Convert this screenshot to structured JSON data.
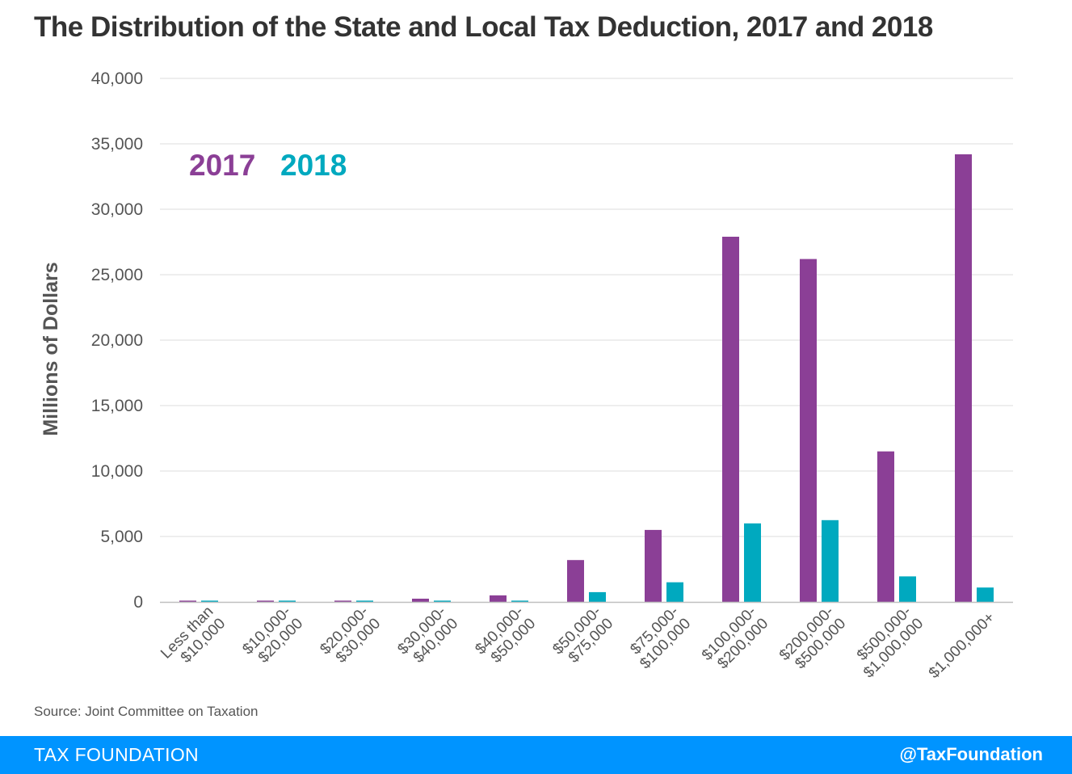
{
  "chart_data": {
    "type": "bar",
    "title": "The Distribution of the State and Local Tax Deduction, 2017 and 2018",
    "xlabel": "",
    "ylabel": "Millions of Dollars",
    "ylim": [
      0,
      40000
    ],
    "yticks": [
      0,
      5000,
      10000,
      15000,
      20000,
      25000,
      30000,
      35000,
      40000
    ],
    "ytick_labels": [
      "0",
      "5,000",
      "10,000",
      "15,000",
      "20,000",
      "25,000",
      "30,000",
      "35,000",
      "40,000"
    ],
    "grid": true,
    "legend_position": "top-left",
    "categories": [
      [
        "Less than",
        "$10,000"
      ],
      [
        "$10,000-",
        "$20,000"
      ],
      [
        "$20,000-",
        "$30,000"
      ],
      [
        "$30,000-",
        "$40,000"
      ],
      [
        "$40,000-",
        "$50,000"
      ],
      [
        "$50,000-",
        "$75,000"
      ],
      [
        "$75,000-",
        "$100,000"
      ],
      [
        "$100,000-",
        "$200,000"
      ],
      [
        "$200,000-",
        "$500,000"
      ],
      [
        "$500,000-",
        "$1,000,000"
      ],
      [
        "$1,000,000+"
      ]
    ],
    "series": [
      {
        "name": "2017",
        "color": "#8b3f96",
        "values": [
          100,
          100,
          100,
          250,
          500,
          3200,
          5500,
          27900,
          26200,
          11500,
          34200
        ]
      },
      {
        "name": "2018",
        "color": "#00a9bf",
        "values": [
          100,
          100,
          100,
          100,
          100,
          750,
          1500,
          6000,
          6250,
          1950,
          1100
        ]
      }
    ]
  },
  "source": "Source: Joint Committee on Taxation",
  "footer": {
    "brand": "TAX FOUNDATION",
    "handle": "@TaxFoundation",
    "color": "#0094ff"
  }
}
